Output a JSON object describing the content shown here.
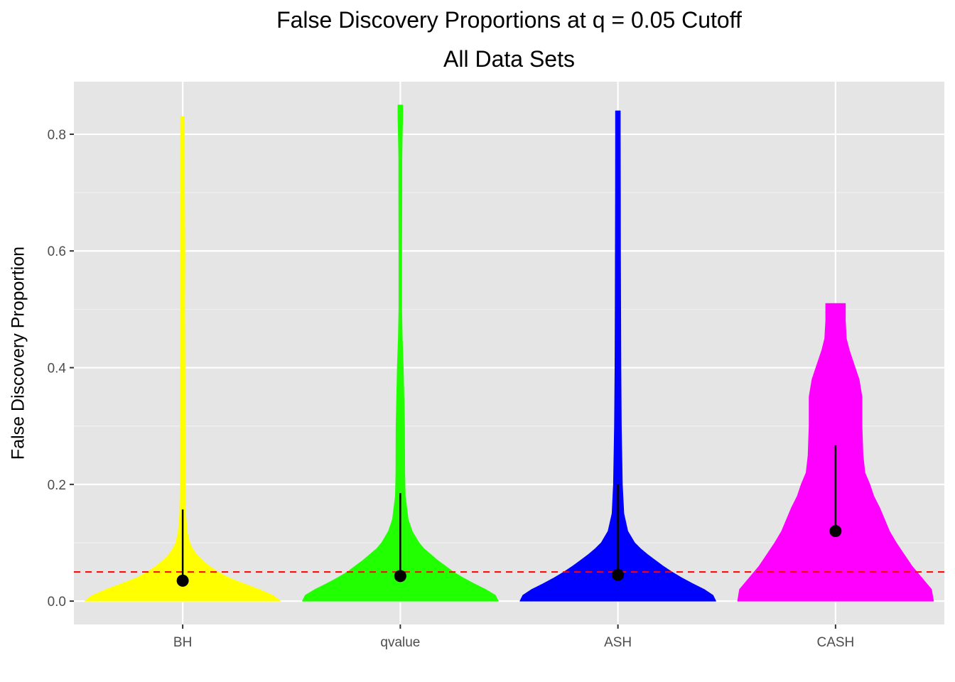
{
  "chart_data": {
    "type": "violin",
    "title": "False Discovery Proportions at q = 0.05 Cutoff",
    "subtitle": "All Data Sets",
    "xlabel": "",
    "ylabel": "False Discovery Proportion",
    "categories": [
      "BH",
      "qvalue",
      "ASH",
      "CASH"
    ],
    "ylim": [
      -0.04,
      0.89
    ],
    "yticks": [
      0.0,
      0.2,
      0.4,
      0.6,
      0.8
    ],
    "ytick_labels": [
      "0.0",
      "0.2",
      "0.4",
      "0.6",
      "0.8"
    ],
    "grid": true,
    "reference_line": {
      "y": 0.05,
      "style": "dashed",
      "color": "#ff0000"
    },
    "series": [
      {
        "category": "BH",
        "color": "#ffff00",
        "mean": 0.035,
        "whisker": [
          0.035,
          0.157
        ],
        "max": 0.83,
        "density": [
          [
            0,
            1.0
          ],
          [
            0.01,
            0.92
          ],
          [
            0.02,
            0.78
          ],
          [
            0.03,
            0.62
          ],
          [
            0.04,
            0.47
          ],
          [
            0.05,
            0.36
          ],
          [
            0.06,
            0.27
          ],
          [
            0.07,
            0.2
          ],
          [
            0.08,
            0.14
          ],
          [
            0.09,
            0.1
          ],
          [
            0.1,
            0.07
          ],
          [
            0.12,
            0.045
          ],
          [
            0.15,
            0.03
          ],
          [
            0.2,
            0.025
          ],
          [
            0.3,
            0.024
          ],
          [
            0.4,
            0.023
          ],
          [
            0.5,
            0.02
          ],
          [
            0.6,
            0.022
          ],
          [
            0.7,
            0.019
          ],
          [
            0.8,
            0.018
          ],
          [
            0.83,
            0.017
          ]
        ]
      },
      {
        "category": "qvalue",
        "color": "#22ff00",
        "mean": 0.043,
        "whisker": [
          0.043,
          0.185
        ],
        "max": 0.85,
        "density": [
          [
            0,
            1.0
          ],
          [
            0.01,
            0.97
          ],
          [
            0.02,
            0.87
          ],
          [
            0.03,
            0.75
          ],
          [
            0.04,
            0.64
          ],
          [
            0.05,
            0.54
          ],
          [
            0.06,
            0.46
          ],
          [
            0.07,
            0.38
          ],
          [
            0.08,
            0.31
          ],
          [
            0.09,
            0.24
          ],
          [
            0.1,
            0.19
          ],
          [
            0.12,
            0.12
          ],
          [
            0.14,
            0.08
          ],
          [
            0.18,
            0.05
          ],
          [
            0.22,
            0.045
          ],
          [
            0.3,
            0.043
          ],
          [
            0.4,
            0.03
          ],
          [
            0.45,
            0.02
          ],
          [
            0.5,
            0.014
          ],
          [
            0.6,
            0.014
          ],
          [
            0.7,
            0.016
          ],
          [
            0.76,
            0.016
          ],
          [
            0.8,
            0.02
          ],
          [
            0.83,
            0.024
          ],
          [
            0.85,
            0.024
          ]
        ]
      },
      {
        "category": "ASH",
        "color": "#0000ff",
        "mean": 0.045,
        "whisker": [
          0.045,
          0.2
        ],
        "max": 0.84,
        "density": [
          [
            0,
            1.0
          ],
          [
            0.01,
            0.97
          ],
          [
            0.02,
            0.88
          ],
          [
            0.03,
            0.76
          ],
          [
            0.04,
            0.65
          ],
          [
            0.05,
            0.55
          ],
          [
            0.06,
            0.46
          ],
          [
            0.07,
            0.38
          ],
          [
            0.08,
            0.3
          ],
          [
            0.09,
            0.23
          ],
          [
            0.1,
            0.17
          ],
          [
            0.12,
            0.1
          ],
          [
            0.15,
            0.06
          ],
          [
            0.2,
            0.045
          ],
          [
            0.3,
            0.035
          ],
          [
            0.4,
            0.03
          ],
          [
            0.5,
            0.028
          ],
          [
            0.6,
            0.026
          ],
          [
            0.7,
            0.025
          ],
          [
            0.8,
            0.024
          ],
          [
            0.84,
            0.024
          ]
        ]
      },
      {
        "category": "CASH",
        "color": "#ff00ff",
        "mean": 0.12,
        "whisker": [
          0.12,
          0.267
        ],
        "max": 0.51,
        "density": [
          [
            0,
            1.0
          ],
          [
            0.02,
            0.98
          ],
          [
            0.04,
            0.88
          ],
          [
            0.06,
            0.78
          ],
          [
            0.08,
            0.7
          ],
          [
            0.1,
            0.62
          ],
          [
            0.12,
            0.55
          ],
          [
            0.14,
            0.5
          ],
          [
            0.16,
            0.45
          ],
          [
            0.18,
            0.39
          ],
          [
            0.2,
            0.35
          ],
          [
            0.22,
            0.3
          ],
          [
            0.25,
            0.28
          ],
          [
            0.3,
            0.27
          ],
          [
            0.35,
            0.27
          ],
          [
            0.38,
            0.24
          ],
          [
            0.4,
            0.2
          ],
          [
            0.43,
            0.14
          ],
          [
            0.45,
            0.11
          ],
          [
            0.48,
            0.1
          ],
          [
            0.51,
            0.1
          ]
        ]
      }
    ]
  }
}
